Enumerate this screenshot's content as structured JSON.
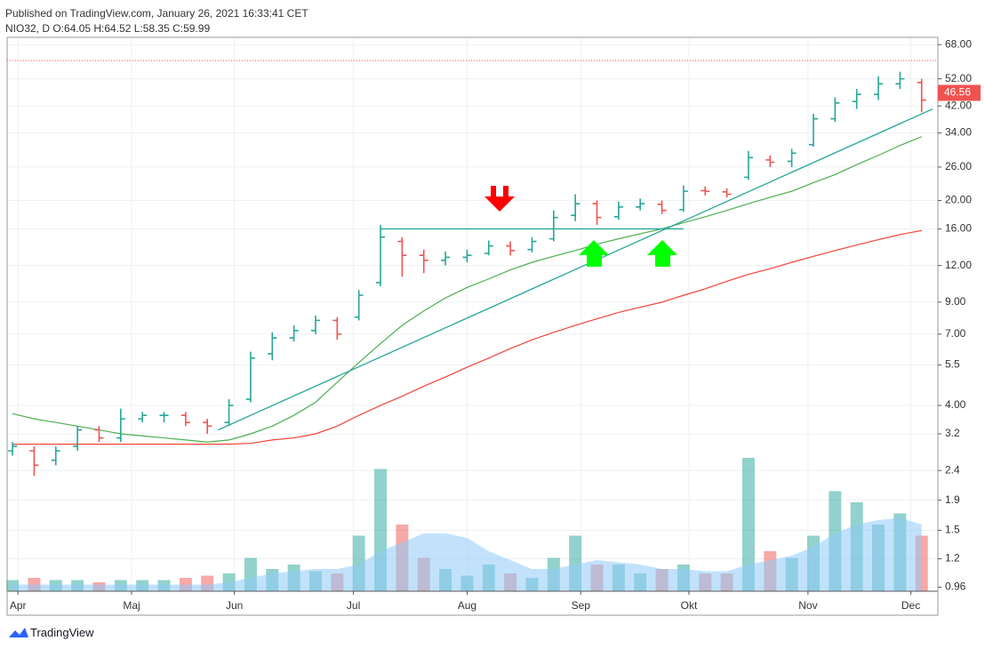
{
  "header": {
    "published": "Published on TradingView.com, January 26, 2021 16:33:41 CET",
    "symbol_info": "NIO32, D O:64.05 H:64.52 L:58.35 C:59.99"
  },
  "footer": {
    "brand": "TradingView"
  },
  "chart_data": {
    "type": "ohlc",
    "log_scale": true,
    "grid": true,
    "x": [
      1,
      5,
      9,
      13,
      17,
      21,
      25,
      29,
      33,
      37,
      41,
      45,
      49,
      53,
      57,
      61,
      65,
      69,
      73,
      77,
      81,
      85,
      89,
      93,
      97,
      101,
      105,
      109,
      113,
      117,
      121,
      125,
      129,
      133,
      137,
      141,
      145,
      149,
      153,
      157,
      161,
      165,
      169
    ],
    "open": [
      2.8,
      2.8,
      2.6,
      2.9,
      3.3,
      3.1,
      3.6,
      3.7,
      3.7,
      3.5,
      3.5,
      4.2,
      6.0,
      6.8,
      7.2,
      7.8,
      8.0,
      10.5,
      14.5,
      13.0,
      12.5,
      12.8,
      13.2,
      14.0,
      13.6,
      14.8,
      17.8,
      19.5,
      17.6,
      19.0,
      19.4,
      18.6,
      21.6,
      21.4,
      24.0,
      27.5,
      27.2,
      31.0,
      38.0,
      43.5,
      46.0,
      50.0,
      50.5
    ],
    "high": [
      3.0,
      2.9,
      2.9,
      3.4,
      3.4,
      3.9,
      3.8,
      3.8,
      3.8,
      3.6,
      4.2,
      6.1,
      7.1,
      7.5,
      8.1,
      8.0,
      9.9,
      16.5,
      15.0,
      13.6,
      13.4,
      13.6,
      14.6,
      14.5,
      15.0,
      18.5,
      21.0,
      20.0,
      19.8,
      20.3,
      20.0,
      22.5,
      22.3,
      22.0,
      29.5,
      28.5,
      30.0,
      39.5,
      45.0,
      48.0,
      53.0,
      55.0,
      52.0
    ],
    "low": [
      2.7,
      2.3,
      2.5,
      2.8,
      3.0,
      3.0,
      3.5,
      3.5,
      3.4,
      3.2,
      3.4,
      4.1,
      5.7,
      6.6,
      7.0,
      6.7,
      7.8,
      10.2,
      11.0,
      11.3,
      12.0,
      12.3,
      13.0,
      13.0,
      13.3,
      14.5,
      17.0,
      16.5,
      17.2,
      18.5,
      18.0,
      18.3,
      20.8,
      20.5,
      23.5,
      26.0,
      26.0,
      30.5,
      37.0,
      41.0,
      44.0,
      48.0,
      40.0
    ],
    "close": [
      2.9,
      2.5,
      2.8,
      3.3,
      3.1,
      3.6,
      3.7,
      3.7,
      3.5,
      3.4,
      4.0,
      5.8,
      6.8,
      7.2,
      7.8,
      7.0,
      9.5,
      15.0,
      13.0,
      12.5,
      12.8,
      13.0,
      14.0,
      13.5,
      14.5,
      17.5,
      19.5,
      17.5,
      19.0,
      19.5,
      18.5,
      21.5,
      21.5,
      21.0,
      28.0,
      27.0,
      29.0,
      38.0,
      43.0,
      46.0,
      50.0,
      52.0,
      44.0
    ],
    "up_color": "#26a69a",
    "down_color": "#ef5350",
    "moving_averages": [
      {
        "color": "#4caf50",
        "values": [
          3.75,
          3.6,
          3.5,
          3.4,
          3.3,
          3.2,
          3.15,
          3.1,
          3.05,
          3.0,
          3.05,
          3.2,
          3.4,
          3.7,
          4.1,
          4.8,
          5.6,
          6.5,
          7.5,
          8.4,
          9.3,
          10.1,
          10.8,
          11.6,
          12.3,
          12.9,
          13.5,
          14.2,
          14.8,
          15.4,
          16.0,
          16.8,
          17.6,
          18.5,
          19.5,
          20.5,
          21.5,
          23.0,
          24.5,
          26.5,
          28.5,
          30.8,
          33.0
        ]
      },
      {
        "color": "#f44336",
        "values": [
          2.95,
          2.95,
          2.95,
          2.95,
          2.95,
          2.95,
          2.95,
          2.95,
          2.95,
          2.95,
          2.95,
          2.97,
          3.05,
          3.1,
          3.2,
          3.4,
          3.7,
          4.0,
          4.3,
          4.65,
          5.0,
          5.4,
          5.8,
          6.25,
          6.7,
          7.1,
          7.5,
          7.9,
          8.3,
          8.65,
          9.0,
          9.5,
          10.0,
          10.6,
          11.2,
          11.7,
          12.3,
          12.9,
          13.5,
          14.1,
          14.7,
          15.3,
          15.8
        ]
      }
    ],
    "trendlines": [
      {
        "color": "#26a69a",
        "x": [
          69,
          125
        ],
        "y": [
          16,
          16
        ]
      },
      {
        "color": "#26a69a",
        "x": [
          39,
          171
        ],
        "y": [
          3.3,
          41
        ]
      }
    ],
    "reference_line": 59.99,
    "reference_color": "#ef5350",
    "last_price": 46.56,
    "volume": [
      5,
      6,
      5,
      5,
      4,
      5,
      5,
      5,
      6,
      7,
      8,
      15,
      10,
      12,
      9,
      8,
      25,
      55,
      30,
      15,
      10,
      7,
      12,
      8,
      6,
      15,
      25,
      12,
      12,
      8,
      10,
      12,
      8,
      8,
      60,
      18,
      15,
      25,
      45,
      40,
      30,
      35,
      25
    ],
    "volume_ma": [
      3,
      3,
      3,
      3,
      3,
      3,
      3,
      3,
      3,
      3,
      4,
      6,
      8,
      9,
      10,
      10,
      12,
      18,
      22,
      26,
      26,
      24,
      18,
      14,
      10,
      10,
      12,
      14,
      13,
      12,
      10,
      10,
      9,
      9,
      12,
      14,
      16,
      20,
      26,
      30,
      32,
      33,
      30
    ],
    "volume_ma_color": "#90caf9",
    "vlim": [
      0,
      62
    ],
    "xlim": [
      0,
      172
    ],
    "ylim": [
      0.93,
      72
    ],
    "xticks": [
      {
        "value": 2,
        "label": "Apr"
      },
      {
        "value": 23,
        "label": "Maj"
      },
      {
        "value": 42,
        "label": "Jun"
      },
      {
        "value": 64,
        "label": "Jul"
      },
      {
        "value": 85,
        "label": "Aug"
      },
      {
        "value": 106,
        "label": "Sep"
      },
      {
        "value": 126,
        "label": "Okt"
      },
      {
        "value": 148,
        "label": "Nov"
      },
      {
        "value": 167,
        "label": "Dec"
      }
    ],
    "yticks": [
      {
        "value": 68,
        "label": "68.00"
      },
      {
        "value": 52,
        "label": "52.00"
      },
      {
        "value": 42,
        "label": "42.00"
      },
      {
        "value": 34,
        "label": "34.00"
      },
      {
        "value": 26,
        "label": "26.00"
      },
      {
        "value": 20,
        "label": "20.00"
      },
      {
        "value": 16,
        "label": "16.00"
      },
      {
        "value": 12,
        "label": "12.00"
      },
      {
        "value": 9,
        "label": "9.00"
      },
      {
        "value": 7,
        "label": "7.00"
      },
      5.5,
      {
        "value": 4,
        "label": "4.00"
      },
      3.2,
      2.4,
      1.9,
      1.5,
      1.2,
      0.96
    ]
  }
}
